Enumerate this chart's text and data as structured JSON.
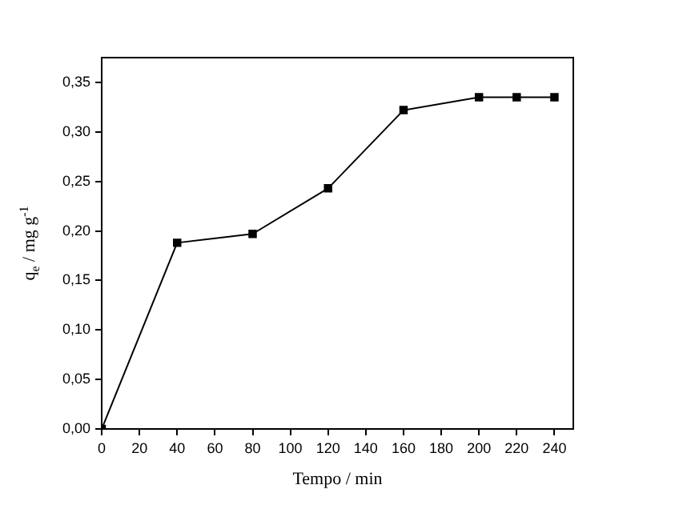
{
  "chart_data": {
    "type": "line",
    "xlabel": "Tempo / min",
    "ylabel": "q$_{e}$ / mg g$^{-1}$",
    "x": [
      0,
      40,
      80,
      120,
      160,
      200,
      220,
      240
    ],
    "series": [
      {
        "color": "#000000",
        "values": [
          0,
          0.188,
          0.197,
          0.243,
          0.322,
          0.335,
          0.335,
          0.335
        ]
      }
    ],
    "xlim": [
      0,
      250
    ],
    "xticks": [
      0,
      20,
      40,
      60,
      80,
      100,
      120,
      140,
      160,
      180,
      200,
      220,
      240
    ],
    "ylim": [
      0,
      0.375
    ],
    "yticks": [
      {
        "value": 0,
        "label": "0,00"
      },
      {
        "value": 0.05,
        "label": "0,05"
      },
      {
        "value": 0.1,
        "label": "0,10"
      },
      {
        "value": 0.15,
        "label": "0,15"
      },
      {
        "value": 0.2,
        "label": "0,20"
      },
      {
        "value": 0.25,
        "label": "0,25"
      },
      {
        "value": 0.3,
        "label": "0,30"
      },
      {
        "value": 0.35,
        "label": "0,35"
      }
    ],
    "grid": false,
    "legend": false,
    "marker": "square",
    "line_style": "solid"
  }
}
